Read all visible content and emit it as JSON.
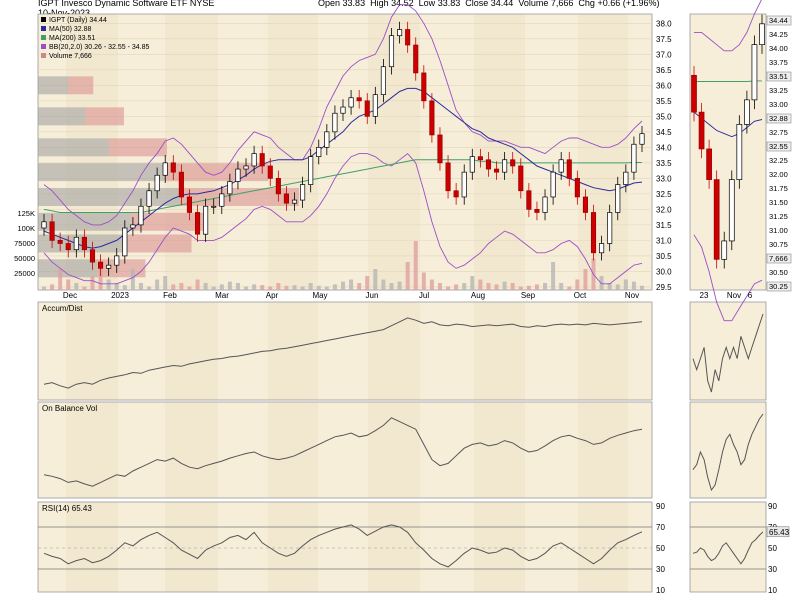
{
  "header": {
    "title": "IGPT  Invesco Dynamic Software ETF  NYSE",
    "date": "10-Nov-2023",
    "open_label": "Open",
    "open": "33.83",
    "high_label": "High",
    "high": "34.52",
    "low_label": "Low",
    "low": "33.83",
    "close_label": "Close",
    "close": "34.44",
    "volume_label": "Volume",
    "volume": "7,666",
    "chg_label": "Chg",
    "chg": "+0.66 (+1.96%)"
  },
  "chart_data": {
    "type": "candlestick",
    "legend": [
      {
        "text": "IGPT (Daily) 34.44",
        "color": "#000000"
      },
      {
        "text": "MA(50) 32.88",
        "color": "#2b2b9e"
      },
      {
        "text": "MA(200) 33.51",
        "color": "#3fa06a"
      },
      {
        "text": "BB(20,2.0) 30.26 - 32.55 - 34.85",
        "color": "#9b4fc7"
      },
      {
        "text": "Volume 7,666",
        "color": "#c98a8a"
      }
    ],
    "x_labels": [
      "Dec",
      "2023",
      "Feb",
      "Mar",
      "Apr",
      "May",
      "Jun",
      "Jul",
      "Aug",
      "Sep",
      "Oct",
      "Nov"
    ],
    "y_ticks": [
      38.0,
      37.5,
      37.0,
      36.5,
      36.0,
      35.5,
      35.0,
      34.5,
      34.0,
      33.5,
      33.0,
      32.5,
      32.0,
      31.5,
      31.0,
      30.5,
      30.0,
      29.5
    ],
    "y_range": [
      29.4,
      38.3
    ],
    "volume_ticks": [
      "125K",
      "100K",
      "75000",
      "50000",
      "25000"
    ],
    "price_close": [
      31.6,
      31.0,
      30.9,
      30.7,
      31.1,
      30.7,
      30.3,
      30.1,
      30.2,
      30.5,
      31.4,
      31.5,
      32.1,
      32.6,
      33.1,
      33.5,
      33.2,
      32.4,
      31.9,
      31.2,
      32.1,
      32.1,
      32.5,
      32.9,
      33.3,
      33.4,
      33.8,
      33.4,
      33.0,
      32.5,
      32.2,
      32.3,
      32.8,
      33.7,
      34.0,
      34.5,
      35.1,
      35.3,
      35.6,
      35.5,
      35.0,
      35.7,
      36.6,
      37.6,
      37.8,
      37.3,
      36.4,
      35.5,
      34.4,
      33.5,
      32.6,
      32.4,
      33.2,
      33.7,
      33.6,
      33.3,
      33.2,
      33.6,
      33.4,
      32.6,
      32.0,
      31.9,
      32.4,
      33.2,
      33.6,
      33.0,
      32.4,
      31.9,
      30.6,
      30.9,
      31.9,
      32.8,
      33.2,
      34.1,
      34.44
    ],
    "ma50": [
      31.3,
      31.2,
      31.1,
      31.0,
      30.9,
      30.8,
      30.75,
      30.8,
      30.9,
      31.0,
      31.2,
      31.4,
      31.6,
      31.8,
      32.0,
      32.2,
      32.35,
      32.45,
      32.5,
      32.5,
      32.55,
      32.6,
      32.7,
      32.8,
      32.95,
      33.1,
      33.3,
      33.45,
      33.55,
      33.6,
      33.6,
      33.6,
      33.6,
      33.7,
      33.9,
      34.1,
      34.3,
      34.5,
      34.8,
      35.0,
      35.1,
      35.2,
      35.4,
      35.6,
      35.8,
      35.9,
      35.9,
      35.8,
      35.6,
      35.4,
      35.2,
      35.0,
      34.8,
      34.6,
      34.5,
      34.3,
      34.2,
      34.1,
      34.0,
      33.8,
      33.6,
      33.4,
      33.3,
      33.2,
      33.1,
      33.0,
      32.9,
      32.8,
      32.7,
      32.65,
      32.6,
      32.65,
      32.75,
      32.85,
      32.88
    ],
    "ma200": [
      32.0,
      31.95,
      31.9,
      31.9,
      31.9,
      31.9,
      31.9,
      31.9,
      31.9,
      31.9,
      31.9,
      31.9,
      31.9,
      31.95,
      32.0,
      32.05,
      32.1,
      32.15,
      32.2,
      32.25,
      32.3,
      32.35,
      32.4,
      32.45,
      32.5,
      32.55,
      32.6,
      32.65,
      32.7,
      32.75,
      32.8,
      32.85,
      32.9,
      32.95,
      33.0,
      33.05,
      33.1,
      33.15,
      33.2,
      33.25,
      33.3,
      33.35,
      33.4,
      33.45,
      33.5,
      33.55,
      33.6,
      33.6,
      33.6,
      33.6,
      33.6,
      33.6,
      33.6,
      33.6,
      33.55,
      33.55,
      33.5,
      33.5,
      33.5,
      33.5,
      33.5,
      33.5,
      33.5,
      33.5,
      33.5,
      33.5,
      33.5,
      33.5,
      33.5,
      33.5,
      33.5,
      33.5,
      33.5,
      33.51,
      33.51
    ],
    "bb_upper": [
      32.8,
      32.6,
      32.3,
      32.0,
      31.8,
      31.6,
      31.5,
      31.5,
      31.6,
      31.8,
      32.2,
      32.6,
      33.1,
      33.5,
      33.8,
      34.2,
      34.3,
      34.1,
      33.8,
      33.5,
      33.2,
      33.1,
      33.2,
      33.5,
      33.9,
      34.2,
      34.5,
      34.4,
      34.3,
      34.0,
      33.8,
      33.6,
      33.6,
      34.0,
      34.6,
      35.3,
      35.8,
      36.3,
      36.6,
      36.8,
      36.9,
      37.0,
      37.5,
      38.2,
      38.6,
      38.6,
      38.4,
      38.0,
      37.5,
      36.8,
      36.0,
      35.2,
      34.8,
      34.5,
      34.4,
      34.2,
      34.2,
      34.2,
      34.1,
      34.0,
      34.0,
      33.9,
      33.8,
      34.0,
      34.2,
      34.3,
      34.3,
      34.2,
      34.1,
      34.0,
      34.0,
      34.1,
      34.3,
      34.6,
      34.85
    ],
    "bb_lower": [
      30.6,
      30.3,
      30.1,
      29.9,
      29.8,
      29.7,
      29.7,
      29.6,
      29.6,
      29.6,
      29.7,
      29.8,
      30.0,
      30.3,
      30.7,
      31.1,
      31.4,
      31.3,
      31.2,
      31.0,
      31.0,
      31.0,
      31.1,
      31.3,
      31.5,
      31.7,
      32.0,
      32.1,
      32.0,
      31.8,
      31.6,
      31.6,
      31.6,
      31.8,
      32.1,
      32.5,
      33.0,
      33.4,
      33.7,
      33.8,
      33.8,
      33.7,
      33.5,
      33.4,
      33.6,
      33.8,
      33.5,
      32.6,
      31.6,
      30.8,
      30.3,
      30.1,
      30.2,
      30.4,
      30.6,
      30.9,
      31.1,
      31.3,
      31.2,
      31.0,
      30.8,
      30.6,
      30.6,
      30.7,
      30.9,
      31.0,
      30.8,
      30.4,
      29.9,
      29.6,
      29.6,
      29.8,
      30.0,
      30.2,
      30.26
    ],
    "volume_rel": [
      0.05,
      0.08,
      0.3,
      0.15,
      0.1,
      0.05,
      0.2,
      0.4,
      0.15,
      0.1,
      0.07,
      0.3,
      0.1,
      0.05,
      0.15,
      0.2,
      0.08,
      0.1,
      0.05,
      0.15,
      0.1,
      0.05,
      0.08,
      0.12,
      0.1,
      0.05,
      0.08,
      0.07,
      0.05,
      0.1,
      0.06,
      0.07,
      0.05,
      0.1,
      0.06,
      0.05,
      0.08,
      0.12,
      0.15,
      0.1,
      0.2,
      0.3,
      0.15,
      0.1,
      0.12,
      0.4,
      0.7,
      0.25,
      0.15,
      0.1,
      0.05,
      0.08,
      0.1,
      0.2,
      0.15,
      0.1,
      0.08,
      0.12,
      0.1,
      0.05,
      0.06,
      0.08,
      0.1,
      0.4,
      0.1,
      0.05,
      0.15,
      0.3,
      0.45,
      0.2,
      0.1,
      0.08,
      0.15,
      0.12,
      0.06
    ],
    "vbp_bars": [
      {
        "price": 36.0,
        "len": 0.18
      },
      {
        "price": 35.0,
        "len": 0.28
      },
      {
        "price": 34.0,
        "len": 0.42
      },
      {
        "price": 33.2,
        "len": 0.75
      },
      {
        "price": 32.4,
        "len": 0.85
      },
      {
        "price": 31.6,
        "len": 0.55
      },
      {
        "price": 30.9,
        "len": 0.5
      },
      {
        "price": 30.1,
        "len": 0.35
      }
    ],
    "accum_dist": [
      0.1,
      0.12,
      0.08,
      0.05,
      0.1,
      0.12,
      0.1,
      0.15,
      0.18,
      0.2,
      0.22,
      0.25,
      0.24,
      0.28,
      0.3,
      0.32,
      0.34,
      0.33,
      0.36,
      0.38,
      0.4,
      0.42,
      0.43,
      0.45,
      0.46,
      0.48,
      0.5,
      0.52,
      0.53,
      0.55,
      0.56,
      0.58,
      0.6,
      0.62,
      0.64,
      0.66,
      0.68,
      0.7,
      0.72,
      0.74,
      0.76,
      0.78,
      0.8,
      0.85,
      0.9,
      0.95,
      0.92,
      0.88,
      0.9,
      0.86,
      0.85,
      0.87,
      0.86,
      0.84,
      0.85,
      0.86,
      0.85,
      0.86,
      0.87,
      0.84,
      0.83,
      0.85,
      0.84,
      0.86,
      0.87,
      0.86,
      0.87,
      0.86,
      0.88,
      0.87,
      0.86,
      0.87,
      0.88,
      0.89,
      0.9
    ],
    "obv": [
      0.2,
      0.18,
      0.15,
      0.1,
      0.12,
      0.08,
      0.05,
      0.1,
      0.15,
      0.2,
      0.18,
      0.25,
      0.3,
      0.35,
      0.4,
      0.38,
      0.42,
      0.35,
      0.3,
      0.28,
      0.32,
      0.35,
      0.38,
      0.42,
      0.45,
      0.48,
      0.5,
      0.45,
      0.42,
      0.4,
      0.42,
      0.45,
      0.5,
      0.55,
      0.6,
      0.65,
      0.7,
      0.72,
      0.75,
      0.7,
      0.72,
      0.78,
      0.85,
      0.95,
      0.9,
      0.85,
      0.8,
      0.6,
      0.4,
      0.32,
      0.35,
      0.45,
      0.55,
      0.6,
      0.62,
      0.58,
      0.6,
      0.65,
      0.62,
      0.55,
      0.5,
      0.52,
      0.58,
      0.65,
      0.7,
      0.72,
      0.68,
      0.65,
      0.6,
      0.62,
      0.68,
      0.72,
      0.75,
      0.78,
      0.8
    ],
    "rsi": [
      45,
      42,
      40,
      35,
      38,
      40,
      36,
      38,
      42,
      48,
      55,
      52,
      58,
      62,
      65,
      60,
      55,
      48,
      44,
      40,
      48,
      52,
      55,
      60,
      62,
      58,
      65,
      55,
      50,
      45,
      42,
      45,
      52,
      58,
      62,
      65,
      68,
      70,
      72,
      68,
      62,
      66,
      70,
      72,
      70,
      65,
      55,
      48,
      40,
      35,
      32,
      38,
      45,
      50,
      48,
      45,
      46,
      50,
      48,
      42,
      38,
      40,
      45,
      52,
      55,
      50,
      45,
      40,
      35,
      40,
      48,
      55,
      58,
      62,
      65.43
    ],
    "rsi_ticks": [
      "90",
      "70",
      "50",
      "30",
      "10"
    ],
    "rsi_last": "65.43",
    "panel_labels": [
      "Accum/Dist",
      "On Balance Vol",
      "RSI(14) 65.43"
    ],
    "right_axis_labels": [
      "34.44",
      "34.25",
      "34.00",
      "33.75",
      "33.51",
      "33.25",
      "33.00",
      "32.88",
      "32.75",
      "32.55",
      "32.25",
      "32.00",
      "31.75",
      "31.50",
      "31.25",
      "31.00",
      "30.75",
      "7,666",
      "30.50",
      "30.25"
    ],
    "zoom_x_labels": [
      "23",
      "Nov",
      "6"
    ]
  }
}
